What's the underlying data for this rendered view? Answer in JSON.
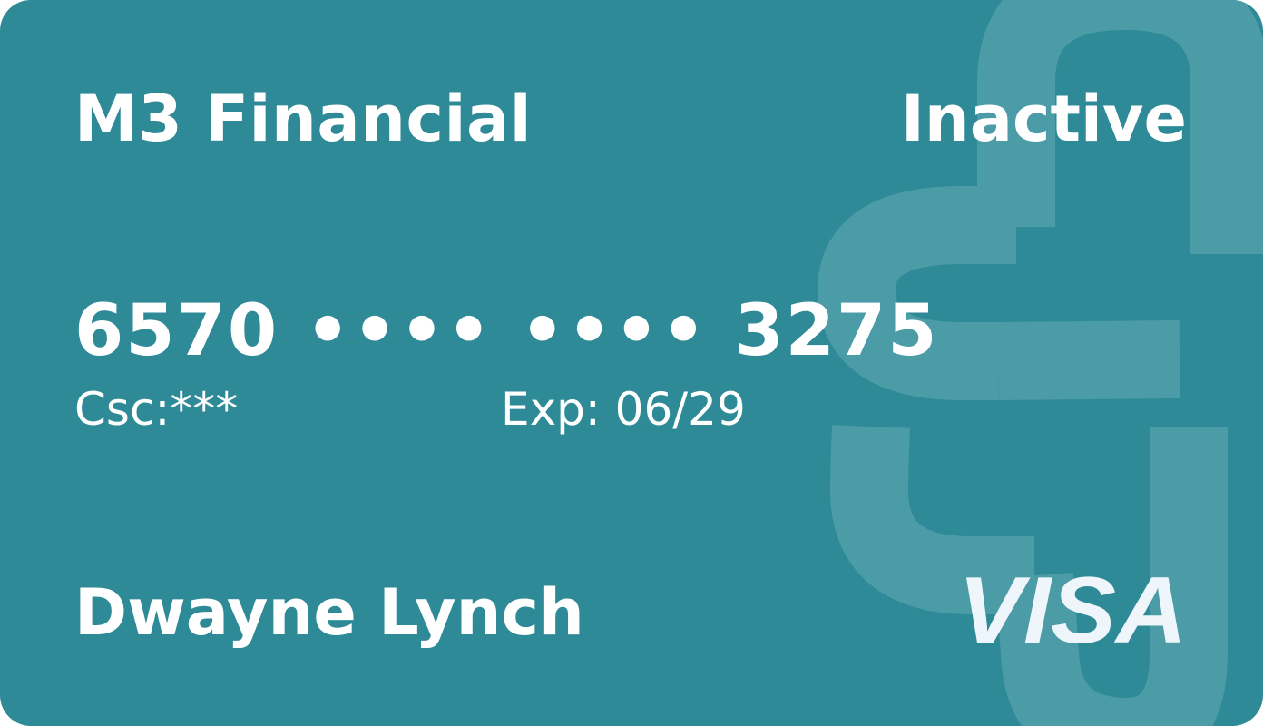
{
  "card": {
    "bank_name": "M3 Financial",
    "status": "Inactive",
    "number": "6570 •••• •••• 3275",
    "csc_label": "Csc:***",
    "exp_label": "Exp: 06/29",
    "holder_name": "Dwayne Lynch",
    "network": "VISA"
  },
  "colors": {
    "card_background": "#2d8a96",
    "watermark": "#4c9ca7",
    "text": "#ffffff",
    "logo": "#eef5fb"
  },
  "icons": {
    "watermark": "bank-logo-mark-icon",
    "network": "visa-logo"
  }
}
